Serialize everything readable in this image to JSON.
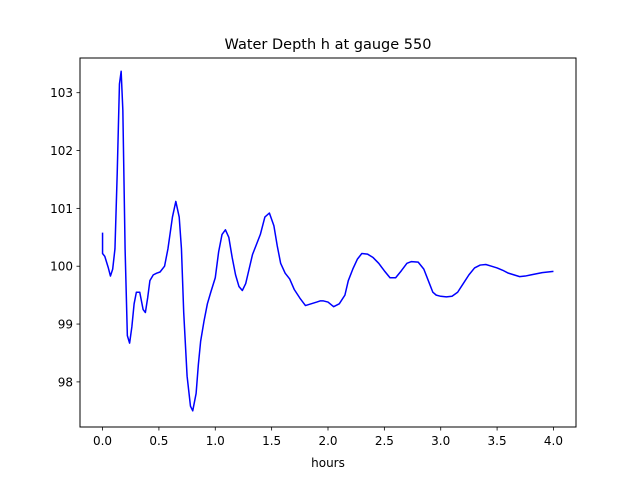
{
  "chart_data": {
    "type": "line",
    "title": "Water Depth h at gauge 550",
    "xlabel": "hours",
    "ylabel": "",
    "xlim": [
      -0.2,
      4.2
    ],
    "ylim": [
      97.22,
      103.6
    ],
    "xticks": [
      0.0,
      0.5,
      1.0,
      1.5,
      2.0,
      2.5,
      3.0,
      3.5,
      4.0
    ],
    "xtick_labels": [
      "0.0",
      "0.5",
      "1.0",
      "1.5",
      "2.0",
      "2.5",
      "3.0",
      "3.5",
      "4.0"
    ],
    "yticks": [
      98,
      99,
      100,
      101,
      102,
      103
    ],
    "ytick_labels": [
      "98",
      "99",
      "100",
      "101",
      "102",
      "103"
    ],
    "grid": false,
    "series": [
      {
        "color": "#0000ff",
        "x": [
          0.0,
          0.0,
          0.02,
          0.05,
          0.07,
          0.09,
          0.11,
          0.13,
          0.15,
          0.165,
          0.18,
          0.2,
          0.22,
          0.24,
          0.26,
          0.28,
          0.3,
          0.33,
          0.36,
          0.38,
          0.4,
          0.42,
          0.45,
          0.48,
          0.51,
          0.55,
          0.58,
          0.62,
          0.65,
          0.68,
          0.7,
          0.72,
          0.75,
          0.78,
          0.8,
          0.83,
          0.85,
          0.87,
          0.9,
          0.93,
          0.96,
          1.0,
          1.03,
          1.06,
          1.09,
          1.12,
          1.15,
          1.18,
          1.21,
          1.24,
          1.27,
          1.3,
          1.33,
          1.36,
          1.4,
          1.44,
          1.48,
          1.52,
          1.55,
          1.58,
          1.62,
          1.66,
          1.7,
          1.75,
          1.8,
          1.85,
          1.9,
          1.93,
          1.96,
          2.0,
          2.05,
          2.1,
          2.15,
          2.18,
          2.22,
          2.26,
          2.3,
          2.35,
          2.4,
          2.45,
          2.5,
          2.55,
          2.6,
          2.65,
          2.7,
          2.74,
          2.8,
          2.85,
          2.9,
          2.93,
          2.96,
          3.0,
          3.05,
          3.1,
          3.15,
          3.2,
          3.25,
          3.3,
          3.35,
          3.4,
          3.45,
          3.5,
          3.55,
          3.6,
          3.65,
          3.7,
          3.75,
          3.8,
          3.85,
          3.9,
          3.95,
          4.0
        ],
        "y": [
          100.58,
          100.22,
          100.17,
          99.98,
          99.83,
          99.95,
          100.3,
          101.6,
          103.15,
          103.37,
          102.7,
          100.3,
          98.8,
          98.67,
          98.95,
          99.35,
          99.55,
          99.55,
          99.25,
          99.2,
          99.45,
          99.75,
          99.85,
          99.88,
          99.9,
          100.0,
          100.3,
          100.85,
          101.12,
          100.85,
          100.3,
          99.2,
          98.1,
          97.58,
          97.5,
          97.8,
          98.3,
          98.7,
          99.05,
          99.35,
          99.55,
          99.8,
          100.25,
          100.55,
          100.63,
          100.5,
          100.15,
          99.85,
          99.65,
          99.58,
          99.7,
          99.95,
          100.2,
          100.35,
          100.55,
          100.85,
          100.92,
          100.7,
          100.35,
          100.05,
          99.88,
          99.78,
          99.6,
          99.45,
          99.32,
          99.35,
          99.38,
          99.4,
          99.4,
          99.38,
          99.3,
          99.35,
          99.5,
          99.75,
          99.95,
          100.12,
          100.22,
          100.21,
          100.15,
          100.05,
          99.92,
          99.8,
          99.8,
          99.92,
          100.05,
          100.08,
          100.07,
          99.95,
          99.7,
          99.55,
          99.5,
          99.48,
          99.47,
          99.48,
          99.55,
          99.7,
          99.85,
          99.97,
          100.02,
          100.03,
          100.0,
          99.97,
          99.93,
          99.88,
          99.85,
          99.82,
          99.83,
          99.85,
          99.87,
          99.89,
          99.9,
          99.91
        ]
      }
    ]
  }
}
